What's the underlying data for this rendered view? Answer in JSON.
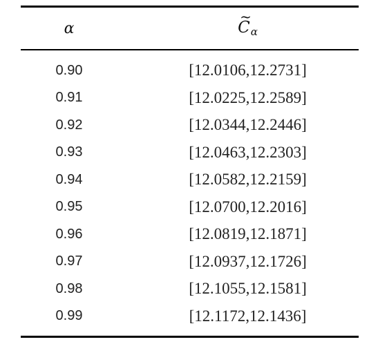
{
  "table": {
    "headers": {
      "alpha": "α",
      "c_symbol": "C",
      "c_tilde": "~",
      "c_subscript": "α"
    },
    "rows": [
      {
        "alpha": "0.90",
        "interval": "[12.0106,12.2731]"
      },
      {
        "alpha": "0.91",
        "interval": "[12.0225,12.2589]"
      },
      {
        "alpha": "0.92",
        "interval": "[12.0344,12.2446]"
      },
      {
        "alpha": "0.93",
        "interval": "[12.0463,12.2303]"
      },
      {
        "alpha": "0.94",
        "interval": "[12.0582,12.2159]"
      },
      {
        "alpha": "0.95",
        "interval": "[12.0700,12.2016]"
      },
      {
        "alpha": "0.96",
        "interval": "[12.0819,12.1871]"
      },
      {
        "alpha": "0.97",
        "interval": "[12.0937,12.1726]"
      },
      {
        "alpha": "0.98",
        "interval": "[12.1055,12.1581]"
      },
      {
        "alpha": "0.99",
        "interval": "[12.1172,12.1436]"
      }
    ]
  }
}
